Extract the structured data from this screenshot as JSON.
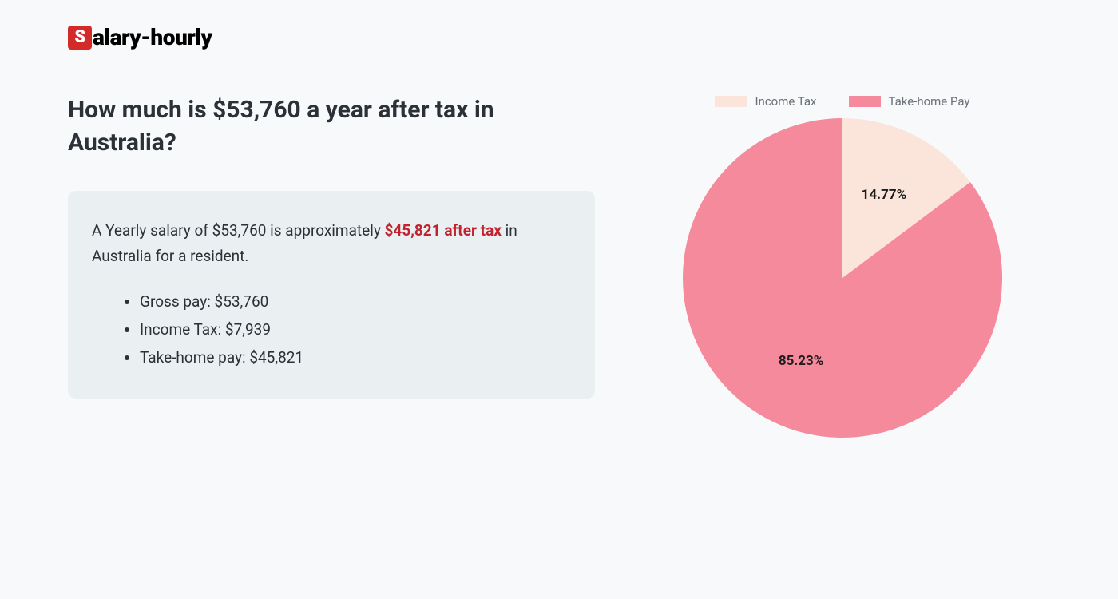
{
  "logo": {
    "s": "S",
    "rest": "alary-hourly",
    "s_bg": "#d32a2a",
    "s_fg": "#ffffff"
  },
  "title": "How much is $53,760 a year after tax in Australia?",
  "summary": {
    "pre": "A Yearly salary of $53,760 is approximately ",
    "highlight": "$45,821 after tax",
    "post": " in Australia for a resident.",
    "highlight_color": "#c2212f",
    "box_bg": "#eaf0f1"
  },
  "breakdown": [
    "Gross pay: $53,760",
    "Income Tax: $7,939",
    "Take-home pay: $45,821"
  ],
  "chart": {
    "type": "pie",
    "background_color": "#f7f9fa",
    "radius": 200,
    "slices": [
      {
        "label": "Income Tax",
        "value": 14.77,
        "color": "#fbe4da",
        "display": "14.77%"
      },
      {
        "label": "Take-home Pay",
        "value": 85.23,
        "color": "#f48a9c",
        "display": "85.23%"
      }
    ],
    "start_angle_deg": -90,
    "label_fontsize": 17,
    "label_fontweight": 700,
    "label_color": "#1d1d1d",
    "legend": {
      "fontsize": 15,
      "color": "#6b7076",
      "swatch_w": 40,
      "swatch_h": 14
    }
  }
}
